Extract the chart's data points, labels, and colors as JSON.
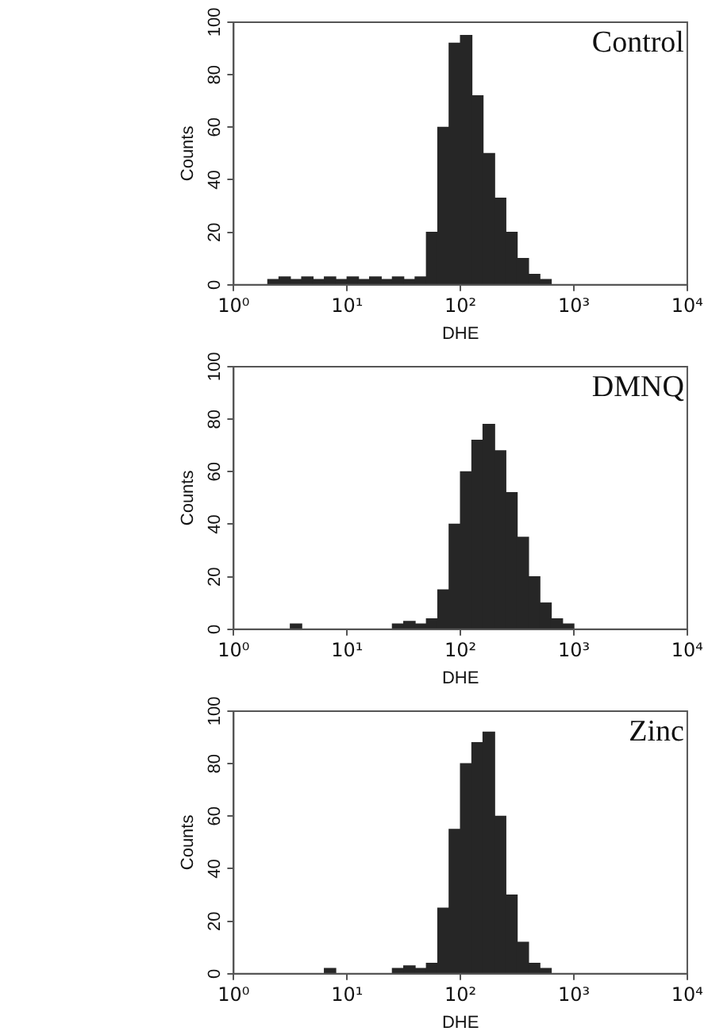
{
  "chart_data": [
    {
      "type": "histogram",
      "title": "Control",
      "xlabel": "DHE",
      "ylabel": "Counts",
      "color": "#262626",
      "log": "x",
      "xlim": [
        1,
        10000
      ],
      "xticks": [
        {
          "value": 1,
          "label": "10⁰"
        },
        {
          "value": 10,
          "label": "10¹"
        },
        {
          "value": 100,
          "label": "10²"
        },
        {
          "value": 1000,
          "label": "10³"
        },
        {
          "value": 10000,
          "label": "10⁴"
        }
      ],
      "ylim": [
        0,
        100
      ],
      "yticks": [
        0,
        20,
        40,
        60,
        80,
        100
      ],
      "bins": [
        1,
        1.26,
        1.58,
        2,
        2.51,
        3.16,
        3.98,
        5.01,
        6.31,
        7.94,
        10,
        12.6,
        15.8,
        20,
        25.1,
        31.6,
        39.8,
        50.1,
        63.1,
        79.4,
        100,
        126,
        158,
        200,
        251,
        316,
        398,
        501,
        631,
        794,
        1000,
        1260,
        1580,
        2000,
        2510,
        3160,
        3980,
        5010,
        6310,
        7940,
        10000
      ],
      "values": [
        0,
        0,
        0,
        2,
        3,
        2,
        3,
        2,
        3,
        2,
        3,
        2,
        3,
        2,
        3,
        2,
        3,
        20,
        60,
        92,
        95,
        72,
        50,
        33,
        20,
        10,
        4,
        2,
        0,
        0,
        0,
        0,
        0,
        0,
        0,
        0,
        0,
        0,
        0,
        0
      ]
    },
    {
      "type": "histogram",
      "title": "DMNQ",
      "xlabel": "DHE",
      "ylabel": "Counts",
      "color": "#262626",
      "log": "x",
      "xlim": [
        1,
        10000
      ],
      "xticks": [
        {
          "value": 1,
          "label": "10⁰"
        },
        {
          "value": 10,
          "label": "10¹"
        },
        {
          "value": 100,
          "label": "10²"
        },
        {
          "value": 1000,
          "label": "10³"
        },
        {
          "value": 10000,
          "label": "10⁴"
        }
      ],
      "ylim": [
        0,
        100
      ],
      "yticks": [
        0,
        20,
        40,
        60,
        80,
        100
      ],
      "bins": [
        1,
        1.26,
        1.58,
        2,
        2.51,
        3.16,
        3.98,
        5.01,
        6.31,
        7.94,
        10,
        12.6,
        15.8,
        20,
        25.1,
        31.6,
        39.8,
        50.1,
        63.1,
        79.4,
        100,
        126,
        158,
        200,
        251,
        316,
        398,
        501,
        631,
        794,
        1000,
        1260,
        1580,
        2000,
        2510,
        3160,
        3980,
        5010,
        6310,
        7940,
        10000
      ],
      "values": [
        0,
        0,
        0,
        0,
        0,
        2,
        0,
        0,
        0,
        0,
        0,
        0,
        0,
        0,
        2,
        3,
        2,
        4,
        15,
        40,
        60,
        72,
        78,
        68,
        52,
        35,
        20,
        10,
        4,
        2,
        0,
        0,
        0,
        0,
        0,
        0,
        0,
        0,
        0,
        0
      ]
    },
    {
      "type": "histogram",
      "title": "Zinc",
      "xlabel": "DHE",
      "ylabel": "Counts",
      "color": "#262626",
      "log": "x",
      "xlim": [
        1,
        10000
      ],
      "xticks": [
        {
          "value": 1,
          "label": "10⁰"
        },
        {
          "value": 10,
          "label": "10¹"
        },
        {
          "value": 100,
          "label": "10²"
        },
        {
          "value": 1000,
          "label": "10³"
        },
        {
          "value": 10000,
          "label": "10⁴"
        }
      ],
      "ylim": [
        0,
        100
      ],
      "yticks": [
        0,
        20,
        40,
        60,
        80,
        100
      ],
      "bins": [
        1,
        1.26,
        1.58,
        2,
        2.51,
        3.16,
        3.98,
        5.01,
        6.31,
        7.94,
        10,
        12.6,
        15.8,
        20,
        25.1,
        31.6,
        39.8,
        50.1,
        63.1,
        79.4,
        100,
        126,
        158,
        200,
        251,
        316,
        398,
        501,
        631,
        794,
        1000,
        1260,
        1580,
        2000,
        2510,
        3160,
        3980,
        5010,
        6310,
        7940,
        10000
      ],
      "values": [
        0,
        0,
        0,
        0,
        0,
        0,
        0,
        0,
        2,
        0,
        0,
        0,
        0,
        0,
        2,
        3,
        2,
        4,
        25,
        55,
        80,
        88,
        92,
        60,
        30,
        12,
        4,
        2,
        0,
        0,
        0,
        0,
        0,
        0,
        0,
        0,
        0,
        0,
        0,
        0
      ]
    }
  ]
}
